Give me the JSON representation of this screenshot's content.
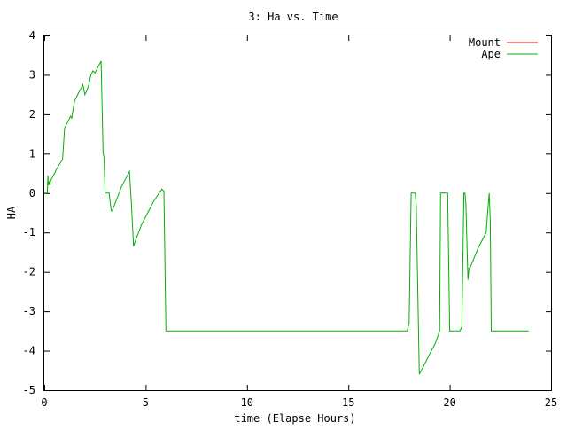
{
  "chart_data": {
    "type": "line",
    "title": "3: Ha vs. Time",
    "xlabel": "time (Elapse Hours)",
    "ylabel": "HA",
    "xlim": [
      0,
      25
    ],
    "ylim": [
      -5,
      4
    ],
    "xticks": [
      0,
      5,
      10,
      15,
      20,
      25
    ],
    "yticks": [
      -5,
      -4,
      -3,
      -2,
      -1,
      0,
      1,
      2,
      3,
      4
    ],
    "grid": false,
    "legend_position": "top-right",
    "series": [
      {
        "name": "Mount",
        "color": "#ff0000",
        "x": [],
        "y": []
      },
      {
        "name": "Ape",
        "color": "#00b000",
        "x": [
          0,
          0.15,
          0.18,
          0.2,
          0.25,
          0.27,
          0.3,
          0.5,
          0.7,
          0.9,
          1.0,
          1.05,
          1.1,
          1.3,
          1.35,
          1.5,
          1.55,
          1.6,
          1.7,
          1.8,
          1.9,
          2.0,
          2.1,
          2.2,
          2.3,
          2.4,
          2.5,
          2.55,
          2.6,
          2.7,
          2.8,
          2.9,
          2.95,
          3.0,
          3.05,
          3.1,
          3.2,
          3.3,
          3.35,
          3.5,
          3.8,
          4.0,
          4.2,
          4.3,
          4.4,
          4.5,
          4.8,
          5.1,
          5.4,
          5.8,
          5.9,
          6.0,
          6.1,
          8.0,
          10.0,
          12.0,
          14.0,
          16.0,
          17.0,
          17.9,
          18.0,
          18.1,
          18.2,
          18.3,
          18.35,
          18.5,
          18.7,
          19.0,
          19.3,
          19.5,
          19.55,
          19.6,
          19.9,
          20.0,
          20.05,
          20.3,
          20.5,
          20.6,
          20.7,
          20.75,
          20.8,
          20.9,
          20.95,
          21.0,
          21.2,
          21.4,
          21.6,
          21.8,
          21.9,
          21.95,
          22.0,
          22.05,
          22.1,
          22.2,
          22.5,
          23.0,
          23.5,
          23.9
        ],
        "y": [
          0,
          0,
          0.45,
          0.2,
          0.3,
          0.2,
          0.3,
          0.5,
          0.7,
          0.85,
          1.65,
          1.7,
          1.75,
          1.95,
          1.9,
          2.35,
          2.4,
          2.45,
          2.55,
          2.65,
          2.75,
          2.5,
          2.6,
          2.75,
          3.0,
          3.1,
          3.05,
          3.1,
          3.15,
          3.25,
          3.35,
          1.0,
          0.9,
          0,
          0,
          0,
          0,
          -0.45,
          -0.45,
          -0.25,
          0.15,
          0.35,
          0.55,
          -0.3,
          -1.35,
          -1.2,
          -0.8,
          -0.5,
          -0.2,
          0.1,
          0.05,
          -3.5,
          -3.5,
          -3.5,
          -3.5,
          -3.5,
          -3.5,
          -3.5,
          -3.5,
          -3.5,
          -3.3,
          0,
          0,
          0,
          -0.3,
          -4.6,
          -4.4,
          -4.1,
          -3.8,
          -3.5,
          0,
          0,
          0,
          -3.5,
          -3.5,
          -3.5,
          -3.5,
          -3.4,
          0,
          0,
          -0.3,
          -2.2,
          -1.9,
          -1.9,
          -1.65,
          -1.4,
          -1.2,
          -1.0,
          -0.3,
          0,
          -0.7,
          -3.5,
          -3.5,
          -3.5,
          -3.5,
          -3.5,
          -3.5,
          -3.5
        ]
      }
    ]
  }
}
